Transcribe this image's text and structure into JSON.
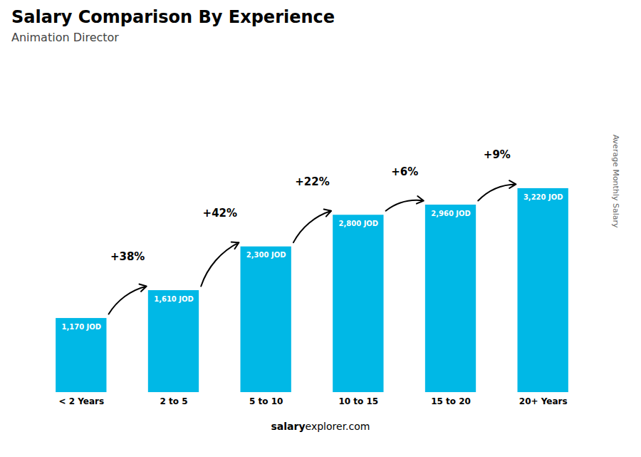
{
  "chart_data": {
    "type": "bar",
    "title": "Salary Comparison By Experience",
    "subtitle": "Animation Director",
    "ylabel": "Average Monthly Salary",
    "caption": [
      "salary",
      "explorer.com"
    ],
    "categories": [
      "< 2 Years",
      "2 to 5",
      "5 to 10",
      "10 to 15",
      "15 to 20",
      "20+ Years"
    ],
    "values": [
      1170,
      1610,
      2300,
      2800,
      2960,
      3220
    ],
    "value_labels": [
      "1,170 JOD",
      "1,610 JOD",
      "2,300 JOD",
      "2,800 JOD",
      "2,960 JOD",
      "3,220 JOD"
    ],
    "data_labels": true,
    "annotations": [
      "+38%",
      "+42%",
      "+22%",
      "+6%",
      "+9%"
    ],
    "color": "#00b8e6",
    "ylim": [
      0,
      5200
    ],
    "tick_labels": "x",
    "grid": false
  }
}
